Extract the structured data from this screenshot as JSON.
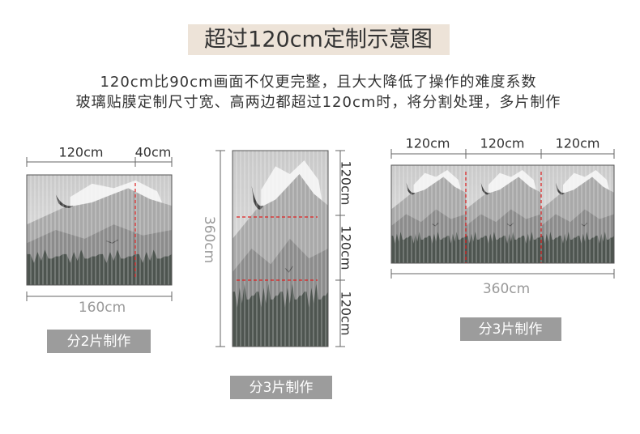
{
  "header": {
    "title": "超过120cm定制示意图",
    "lines": [
      "120cm比90cm画面不仅更完整，且大大降低了操作的难度系数",
      "玻璃贴膜定制尺寸宽、高两边都超过120cm时，将分割处理，多片制作"
    ]
  },
  "panels": [
    {
      "top_labels": [
        "120cm",
        "40cm"
      ],
      "bottom_label": "160cm",
      "badge": "分2片制作"
    },
    {
      "side_labels": [
        "120cm",
        "120cm",
        "120cm"
      ],
      "left_label": "360cm",
      "badge": "分3片制作"
    },
    {
      "top_labels": [
        "120cm",
        "120cm",
        "120cm"
      ],
      "bottom_label": "360cm",
      "badge": "分3片制作"
    }
  ]
}
